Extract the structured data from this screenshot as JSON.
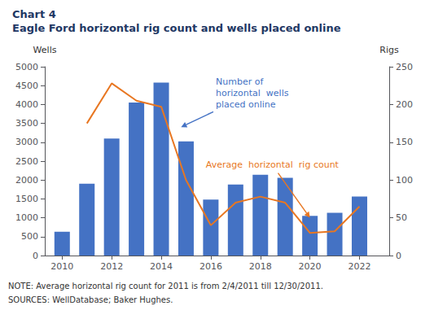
{
  "chart_data": {
    "type": "bar",
    "title": "Chart 4",
    "subtitle": "Eagle Ford horizontal rig count and wells placed online",
    "title_color": "#1F3864",
    "ylabel": "Wells",
    "y2label": "Rigs",
    "x": [
      2010,
      2011,
      2012,
      2013,
      2014,
      2015,
      2016,
      2017,
      2018,
      2019,
      2020,
      2021,
      2022
    ],
    "xlim": [
      2009.3,
      2023.2
    ],
    "xticks": [
      2010,
      2012,
      2014,
      2016,
      2018,
      2020,
      2022
    ],
    "series": [
      {
        "type": "bar",
        "color": "#4472C4",
        "values": [
          630,
          1900,
          3100,
          4050,
          4580,
          3020,
          1480,
          1880,
          2140,
          2060,
          1050,
          1130,
          1560
        ]
      },
      {
        "type": "line",
        "axis": "y2",
        "color": "#E87722",
        "values": [
          null,
          175,
          228,
          205,
          197,
          100,
          40,
          70,
          78,
          70,
          30,
          32,
          65
        ]
      }
    ],
    "ylim": [
      0,
      5000
    ],
    "yticks": [
      0,
      500,
      1000,
      1500,
      2000,
      2500,
      3000,
      3500,
      4000,
      4500,
      5000
    ],
    "y2lim": [
      0,
      250
    ],
    "y2ticks": [
      0,
      50,
      100,
      150,
      200,
      250
    ],
    "grid": false,
    "annotations": [
      {
        "text": "Number of\nhorizontal  wells\nplaced online",
        "x": 2016.2,
        "y": 4300,
        "arrow_x": 2014.8,
        "arrow_y": 3400,
        "axis": "y",
        "color": "#4472C4"
      },
      {
        "text": "Average  horizontal  rig count",
        "x": 2015.8,
        "y": 120,
        "arrow_x": 2020.0,
        "arrow_y": 50,
        "axis": "y2",
        "color": "#E87722"
      },
      {
        "text": "NOTE: Average horizontal rig count for 2011 is from 2/4/2011 till 12/30/2011."
      },
      {
        "text": "SOURCES: WellDatabase; Baker Hughes."
      }
    ]
  }
}
